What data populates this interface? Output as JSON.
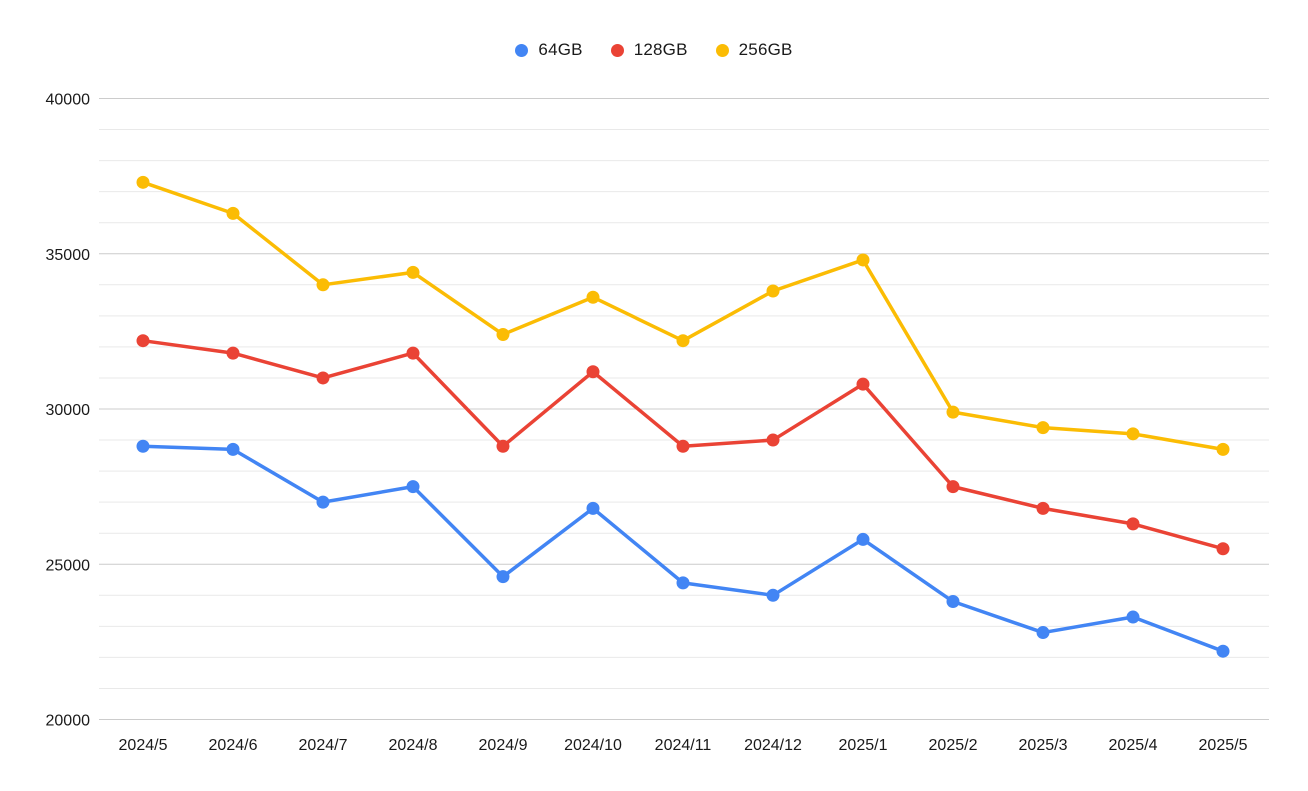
{
  "chart_data": {
    "type": "line",
    "title": "",
    "xlabel": "",
    "ylabel": "",
    "categories": [
      "2024/5",
      "2024/6",
      "2024/7",
      "2024/8",
      "2024/9",
      "2024/10",
      "2024/11",
      "2024/12",
      "2025/1",
      "2025/2",
      "2025/3",
      "2025/4",
      "2025/5"
    ],
    "series": [
      {
        "name": "64GB",
        "color": "#4285F4",
        "values": [
          28800,
          28700,
          27000,
          27500,
          24600,
          26800,
          24400,
          24000,
          25800,
          23800,
          22800,
          23300,
          22200
        ]
      },
      {
        "name": "128GB",
        "color": "#EA4335",
        "values": [
          32200,
          31800,
          31000,
          31800,
          28800,
          31200,
          28800,
          29000,
          30800,
          27500,
          26800,
          26300,
          25500
        ]
      },
      {
        "name": "256GB",
        "color": "#FBBC04",
        "values": [
          37300,
          36300,
          34000,
          34400,
          32400,
          33600,
          32200,
          33800,
          34800,
          29900,
          29400,
          29200,
          28700
        ]
      }
    ],
    "ylim": [
      20000,
      40000
    ],
    "y_ticks": [
      40000,
      35000,
      30000,
      25000,
      20000
    ],
    "y_minor_step": 1000,
    "grid": true,
    "legend_position": "top-center"
  },
  "styles": {
    "background": "#FFFFFF",
    "major_gridline": "#CCCCCC",
    "minor_gridline": "#E9E9E9",
    "label_color": "#1A1A1A"
  }
}
